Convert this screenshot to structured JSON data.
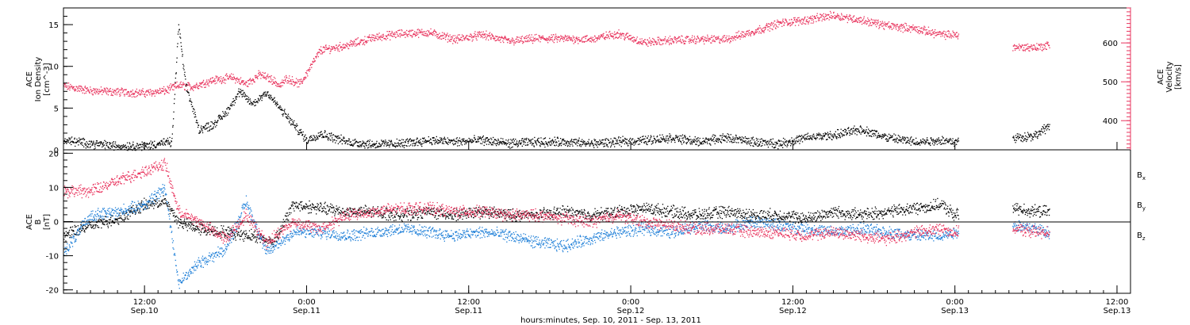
{
  "colors": {
    "black": "#000000",
    "pink": "#e8335d",
    "blue": "#1e7fd8"
  },
  "xaxis": {
    "start": "2011-09-10T06:00",
    "end": "2011-09-13T13:00",
    "ticks": [
      {
        "t": "2011-09-10T12:00",
        "time": "12:00",
        "date": "Sep.10"
      },
      {
        "t": "2011-09-11T00:00",
        "time": "0:00",
        "date": "Sep.11"
      },
      {
        "t": "2011-09-11T12:00",
        "time": "12:00",
        "date": "Sep.11"
      },
      {
        "t": "2011-09-12T00:00",
        "time": "0:00",
        "date": "Sep.12"
      },
      {
        "t": "2011-09-12T12:00",
        "time": "12:00",
        "date": "Sep.12"
      },
      {
        "t": "2011-09-13T00:00",
        "time": "0:00",
        "date": "Sep.13"
      },
      {
        "t": "2011-09-13T12:00",
        "time": "12:00",
        "date": "Sep.13"
      }
    ],
    "title": "hours:minutes, Sep. 10, 2011 - Sep. 13, 2011"
  },
  "top_panel": {
    "left_label_1": "ACE",
    "left_label_2": "Ion Density",
    "left_label_3": "[cm^-3]",
    "right_label_1": "ACE",
    "right_label_2": "Velocity",
    "right_label_3": "[km/s]",
    "left_ticks": [
      "0",
      "5",
      "10",
      "15"
    ],
    "right_ticks": [
      "400",
      "500",
      "600"
    ]
  },
  "bottom_panel": {
    "label_1": "ACE",
    "label_2": "B",
    "label_3": "[nT]",
    "ticks": [
      "-20",
      "-10",
      "0",
      "10",
      "20"
    ],
    "legend": [
      {
        "base": "B",
        "sub": "x",
        "color": "#000000"
      },
      {
        "base": "B",
        "sub": "y",
        "color": "#1e7fd8"
      },
      {
        "base": "B",
        "sub": "z",
        "color": "#e8335d"
      }
    ]
  },
  "chart_data": [
    {
      "type": "scatter",
      "panel": "top",
      "ylabel": "ACE Ion Density [cm^-3]",
      "ylim": [
        0,
        17
      ],
      "y2label": "ACE Velocity [km/s]",
      "y2lim": [
        325,
        690
      ],
      "series": [
        {
          "axis": "y2",
          "color": "#e8335d",
          "x": [
            "2011-09-10T06:00",
            "2011-09-10T08:00",
            "2011-09-10T10:00",
            "2011-09-10T12:00",
            "2011-09-10T13:30",
            "2011-09-10T14:30",
            "2011-09-10T15:30",
            "2011-09-10T17:00",
            "2011-09-10T18:30",
            "2011-09-10T19:30",
            "2011-09-10T20:30",
            "2011-09-10T21:30",
            "2011-09-10T22:00",
            "2011-09-10T22:30",
            "2011-09-10T23:30",
            "2011-09-11T01:00",
            "2011-09-11T03:00",
            "2011-09-11T05:00",
            "2011-09-11T07:00",
            "2011-09-11T09:00",
            "2011-09-11T11:00",
            "2011-09-11T13:00",
            "2011-09-11T15:00",
            "2011-09-11T17:00",
            "2011-09-11T19:00",
            "2011-09-11T21:00",
            "2011-09-11T23:00",
            "2011-09-12T01:00",
            "2011-09-12T03:00",
            "2011-09-12T05:00",
            "2011-09-12T07:00",
            "2011-09-12T09:00",
            "2011-09-12T11:00",
            "2011-09-12T13:00",
            "2011-09-12T15:00",
            "2011-09-12T17:00",
            "2011-09-12T19:00",
            "2011-09-12T21:00",
            "2011-09-12T23:00",
            "2011-09-13T00:00",
            "2011-09-13T04:30",
            "2011-09-13T06:00",
            "2011-09-13T07:00"
          ],
          "y": [
            490,
            478,
            475,
            472,
            478,
            492,
            488,
            505,
            512,
            495,
            520,
            505,
            490,
            510,
            495,
            582,
            595,
            615,
            625,
            628,
            610,
            622,
            605,
            612,
            612,
            610,
            625,
            602,
            608,
            610,
            610,
            630,
            652,
            660,
            672,
            660,
            645,
            638,
            622,
            622,
            590,
            590,
            595
          ]
        },
        {
          "axis": "y",
          "color": "#000000",
          "x": [
            "2011-09-10T06:00",
            "2011-09-10T08:00",
            "2011-09-10T10:00",
            "2011-09-10T12:00",
            "2011-09-10T13:00",
            "2011-09-10T14:00",
            "2011-09-10T14:30",
            "2011-09-10T15:00",
            "2011-09-10T16:00",
            "2011-09-10T17:00",
            "2011-09-10T18:00",
            "2011-09-10T19:00",
            "2011-09-10T20:00",
            "2011-09-10T21:00",
            "2011-09-10T22:00",
            "2011-09-11T00:00",
            "2011-09-11T01:00",
            "2011-09-11T03:00",
            "2011-09-11T05:00",
            "2011-09-11T07:00",
            "2011-09-11T09:00",
            "2011-09-11T11:00",
            "2011-09-11T13:00",
            "2011-09-11T15:00",
            "2011-09-11T17:00",
            "2011-09-11T19:00",
            "2011-09-11T21:00",
            "2011-09-11T23:00",
            "2011-09-12T01:00",
            "2011-09-12T03:00",
            "2011-09-12T05:00",
            "2011-09-12T07:00",
            "2011-09-12T09:00",
            "2011-09-12T11:00",
            "2011-09-12T13:00",
            "2011-09-12T15:00",
            "2011-09-12T17:00",
            "2011-09-12T19:00",
            "2011-09-12T21:00",
            "2011-09-12T23:00",
            "2011-09-13T00:00",
            "2011-09-13T04:30",
            "2011-09-13T06:00",
            "2011-09-13T07:00"
          ],
          "y": [
            1.2,
            0.8,
            0.5,
            0.5,
            0.8,
            1.0,
            15.0,
            8.0,
            2.5,
            3.0,
            4.5,
            7.0,
            5.5,
            7.0,
            5.0,
            1.2,
            2.0,
            1.0,
            0.7,
            0.8,
            1.2,
            1.0,
            1.2,
            0.8,
            1.0,
            1.0,
            0.8,
            1.0,
            1.2,
            1.5,
            1.0,
            1.5,
            1.0,
            0.8,
            1.5,
            1.8,
            2.5,
            1.5,
            1.0,
            1.2,
            1.0,
            1.5,
            1.8,
            3.0
          ]
        }
      ]
    },
    {
      "type": "scatter",
      "panel": "bottom",
      "ylabel": "ACE B [nT]",
      "ylim": [
        -21,
        21
      ],
      "series": [
        {
          "name": "Bx",
          "color": "#000000",
          "x": [
            "2011-09-10T06:00",
            "2011-09-10T08:00",
            "2011-09-10T10:00",
            "2011-09-10T12:00",
            "2011-09-10T13:30",
            "2011-09-10T14:30",
            "2011-09-10T16:00",
            "2011-09-10T18:00",
            "2011-09-10T20:00",
            "2011-09-10T21:30",
            "2011-09-10T23:00",
            "2011-09-11T01:00",
            "2011-09-11T03:00",
            "2011-09-11T05:00",
            "2011-09-11T07:00",
            "2011-09-11T09:00",
            "2011-09-11T11:00",
            "2011-09-11T13:00",
            "2011-09-11T15:00",
            "2011-09-11T17:00",
            "2011-09-11T19:00",
            "2011-09-11T21:00",
            "2011-09-11T23:00",
            "2011-09-12T01:00",
            "2011-09-12T03:00",
            "2011-09-12T05:00",
            "2011-09-12T07:00",
            "2011-09-12T09:00",
            "2011-09-12T11:00",
            "2011-09-12T13:00",
            "2011-09-12T15:00",
            "2011-09-12T17:00",
            "2011-09-12T19:00",
            "2011-09-12T21:00",
            "2011-09-12T23:00",
            "2011-09-13T00:00",
            "2011-09-13T04:30",
            "2011-09-13T06:00",
            "2011-09-13T07:00"
          ],
          "y": [
            -4,
            -1,
            1,
            5,
            6,
            0,
            -2,
            -3,
            -4,
            -6,
            5,
            4,
            3,
            3,
            2,
            3,
            2,
            3,
            2,
            2,
            3,
            2,
            3,
            4,
            3,
            2,
            3,
            2,
            2,
            1,
            3,
            2,
            3,
            4,
            5,
            2,
            4,
            3,
            3
          ]
        },
        {
          "name": "By",
          "color": "#1e7fd8",
          "x": [
            "2011-09-10T06:00",
            "2011-09-10T08:00",
            "2011-09-10T10:00",
            "2011-09-10T12:00",
            "2011-09-10T13:30",
            "2011-09-10T14:30",
            "2011-09-10T16:00",
            "2011-09-10T18:00",
            "2011-09-10T19:30",
            "2011-09-10T21:00",
            "2011-09-10T23:00",
            "2011-09-11T01:00",
            "2011-09-11T03:00",
            "2011-09-11T05:00",
            "2011-09-11T07:00",
            "2011-09-11T09:00",
            "2011-09-11T11:00",
            "2011-09-11T13:00",
            "2011-09-11T15:00",
            "2011-09-11T17:00",
            "2011-09-11T19:00",
            "2011-09-11T21:00",
            "2011-09-11T23:00",
            "2011-09-12T01:00",
            "2011-09-12T03:00",
            "2011-09-12T05:00",
            "2011-09-12T07:00",
            "2011-09-12T09:00",
            "2011-09-12T11:00",
            "2011-09-12T13:00",
            "2011-09-12T15:00",
            "2011-09-12T17:00",
            "2011-09-12T19:00",
            "2011-09-12T21:00",
            "2011-09-12T23:00",
            "2011-09-13T00:00",
            "2011-09-13T04:30",
            "2011-09-13T06:00",
            "2011-09-13T07:00"
          ],
          "y": [
            -9,
            2,
            3,
            5,
            10,
            -18,
            -12,
            -8,
            6,
            -9,
            -3,
            -3,
            -4,
            -3,
            -2,
            -3,
            -4,
            -3,
            -4,
            -6,
            -7,
            -5,
            -3,
            -2,
            -3,
            -1,
            -2,
            0,
            -1,
            -2,
            -3,
            -2,
            -3,
            -4,
            -4,
            -3,
            -1,
            -2,
            -3
          ]
        },
        {
          "name": "Bz",
          "color": "#e8335d",
          "x": [
            "2011-09-10T06:00",
            "2011-09-10T08:00",
            "2011-09-10T10:00",
            "2011-09-10T12:00",
            "2011-09-10T13:30",
            "2011-09-10T14:30",
            "2011-09-10T16:00",
            "2011-09-10T18:00",
            "2011-09-10T19:30",
            "2011-09-10T21:00",
            "2011-09-10T23:00",
            "2011-09-11T01:00",
            "2011-09-11T03:00",
            "2011-09-11T05:00",
            "2011-09-11T07:00",
            "2011-09-11T09:00",
            "2011-09-11T11:00",
            "2011-09-11T13:00",
            "2011-09-11T15:00",
            "2011-09-11T17:00",
            "2011-09-11T19:00",
            "2011-09-11T21:00",
            "2011-09-11T23:00",
            "2011-09-12T01:00",
            "2011-09-12T03:00",
            "2011-09-12T05:00",
            "2011-09-12T07:00",
            "2011-09-12T09:00",
            "2011-09-12T11:00",
            "2011-09-12T13:00",
            "2011-09-12T15:00",
            "2011-09-12T17:00",
            "2011-09-12T19:00",
            "2011-09-12T21:00",
            "2011-09-12T23:00",
            "2011-09-13T00:00",
            "2011-09-13T04:30",
            "2011-09-13T06:00",
            "2011-09-13T07:00"
          ],
          "y": [
            9,
            9,
            12,
            15,
            17,
            3,
            0,
            -5,
            2,
            -6,
            0,
            -2,
            2,
            3,
            4,
            4,
            3,
            3,
            2,
            2,
            1,
            0,
            2,
            0,
            -1,
            -2,
            -2,
            -3,
            -3,
            -4,
            -3,
            -4,
            -5,
            -3,
            -2,
            -3,
            -2,
            -3,
            -3
          ]
        }
      ]
    }
  ]
}
